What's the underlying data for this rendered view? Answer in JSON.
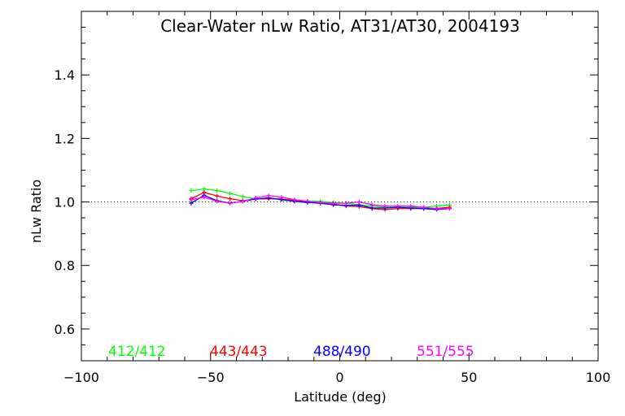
{
  "chart_data": {
    "type": "line",
    "title": "Clear-Water nLw Ratio, AT31/AT30, 2004193",
    "xlabel": "Latitude (deg)",
    "ylabel": "nLw Ratio",
    "xlim": [
      -100,
      100
    ],
    "ylim": [
      0.5,
      1.6
    ],
    "xticks": [
      -100,
      -50,
      0,
      50,
      100
    ],
    "xtick_labels": [
      "−100",
      "−50",
      "0",
      "50",
      "100"
    ],
    "yticks": [
      0.6,
      0.8,
      1.0,
      1.2,
      1.4
    ],
    "ytick_labels": [
      "0.6",
      "0.8",
      "1.0",
      "1.2",
      "1.4"
    ],
    "reference_line": 1.0,
    "grid": false,
    "legend_placement": "bottom-inside",
    "x": [
      -57.5,
      -52.5,
      -47.5,
      -42.5,
      -37.5,
      -32.5,
      -27.5,
      -22.5,
      -17.5,
      -12.5,
      -7.5,
      -2.5,
      2.5,
      7.5,
      12.5,
      17.5,
      22.5,
      27.5,
      32.5,
      37.5,
      42.5
    ],
    "series": [
      {
        "name": "412/412",
        "color": "#00ff00",
        "values": [
          1.036,
          1.041,
          1.036,
          1.027,
          1.017,
          1.01,
          1.012,
          1.009,
          1.006,
          1.003,
          1.002,
          0.998,
          0.996,
          0.991,
          0.987,
          0.983,
          0.983,
          0.983,
          0.983,
          0.987,
          0.99
        ]
      },
      {
        "name": "443/443",
        "color": "#ff0000",
        "values": [
          1.01,
          1.03,
          1.019,
          1.01,
          1.004,
          1.009,
          1.01,
          1.009,
          1.004,
          1.0,
          0.996,
          0.993,
          0.987,
          0.985,
          0.979,
          0.976,
          0.979,
          0.979,
          0.979,
          0.98,
          0.983
        ]
      },
      {
        "name": "488/490",
        "color": "#0000ff",
        "values": [
          0.996,
          1.021,
          1.004,
          0.996,
          1.002,
          1.009,
          1.013,
          1.007,
          1.002,
          0.998,
          0.996,
          0.991,
          0.989,
          0.99,
          0.981,
          0.981,
          0.983,
          0.981,
          0.979,
          0.976,
          0.979
        ]
      },
      {
        "name": "551/555",
        "color": "#ff00ff",
        "values": [
          1.007,
          1.015,
          1.002,
          0.996,
          1.002,
          1.013,
          1.02,
          1.015,
          1.007,
          1.002,
          0.998,
          0.996,
          0.996,
          1.0,
          0.991,
          0.987,
          0.987,
          0.987,
          0.983,
          0.979,
          0.979
        ]
      }
    ]
  }
}
